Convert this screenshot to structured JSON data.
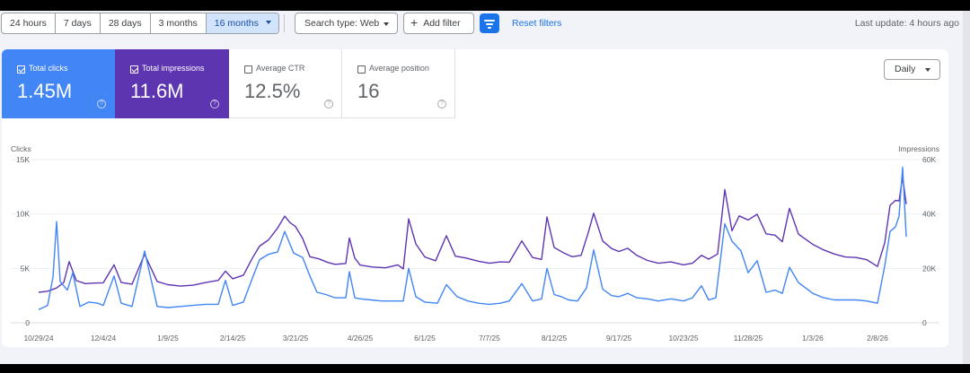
{
  "toolbar": {
    "ranges": [
      {
        "label": "24 hours",
        "active": false
      },
      {
        "label": "7 days",
        "active": false
      },
      {
        "label": "28 days",
        "active": false
      },
      {
        "label": "3 months",
        "active": false
      },
      {
        "label": "16 months",
        "active": true
      }
    ],
    "search_type": "Search type: Web",
    "add_filter": "Add filter",
    "reset_filters": "Reset filters",
    "last_update": "Last update: 4 hours ago"
  },
  "metrics": [
    {
      "label": "Total clicks",
      "value": "1.45M",
      "checked": true,
      "color": "#4285f4"
    },
    {
      "label": "Total impressions",
      "value": "11.6M",
      "checked": true,
      "color": "#5e35b1"
    },
    {
      "label": "Average CTR",
      "value": "12.5%",
      "checked": false
    },
    {
      "label": "Average position",
      "value": "16",
      "checked": false
    }
  ],
  "granularity": "Daily",
  "colors": {
    "clicks": "#4285f4",
    "impressions": "#5e35b1",
    "accent": "#1a73e8"
  },
  "chart_data": {
    "type": "line",
    "left_axis": {
      "title": "Clicks",
      "ticks": [
        "0",
        "5K",
        "10K",
        "15K"
      ],
      "range": [
        0,
        15000
      ]
    },
    "right_axis": {
      "title": "Impressions",
      "ticks": [
        "0",
        "20K",
        "40K",
        "60K"
      ],
      "range": [
        0,
        60000
      ]
    },
    "x_tick_labels": [
      "10/29/24",
      "12/4/24",
      "1/9/25",
      "2/14/25",
      "3/21/25",
      "4/26/25",
      "6/1/25",
      "7/7/25",
      "8/12/25",
      "9/17/25",
      "10/23/25",
      "11/28/25",
      "1/3/26",
      "2/8/26"
    ],
    "x_range": [
      "10/29/24",
      "2/26/26"
    ],
    "grid": true,
    "series": [
      {
        "name": "Clicks",
        "axis": "left",
        "color": "#4285f4",
        "points": [
          [
            "10/29/24",
            1200
          ],
          [
            "11/3/24",
            1600
          ],
          [
            "11/6/24",
            4200
          ],
          [
            "11/8/24",
            9300
          ],
          [
            "11/10/24",
            3800
          ],
          [
            "11/14/24",
            3000
          ],
          [
            "11/17/24",
            4600
          ],
          [
            "11/21/24",
            1500
          ],
          [
            "11/26/24",
            1900
          ],
          [
            "12/1/24",
            1800
          ],
          [
            "12/4/24",
            1600
          ],
          [
            "12/10/24",
            4300
          ],
          [
            "12/14/24",
            1800
          ],
          [
            "12/20/24",
            1500
          ],
          [
            "12/27/24",
            6600
          ],
          [
            "1/3/25",
            1500
          ],
          [
            "1/9/25",
            1400
          ],
          [
            "1/16/25",
            1500
          ],
          [
            "1/23/25",
            1600
          ],
          [
            "1/30/25",
            1700
          ],
          [
            "2/6/25",
            1700
          ],
          [
            "2/10/25",
            3900
          ],
          [
            "2/14/25",
            1600
          ],
          [
            "2/20/25",
            1900
          ],
          [
            "2/25/25",
            4100
          ],
          [
            "3/1/25",
            5800
          ],
          [
            "3/6/25",
            6300
          ],
          [
            "3/11/25",
            6500
          ],
          [
            "3/15/25",
            8400
          ],
          [
            "3/20/25",
            6400
          ],
          [
            "3/25/25",
            6000
          ],
          [
            "3/29/25",
            4300
          ],
          [
            "4/2/25",
            2800
          ],
          [
            "4/7/25",
            2600
          ],
          [
            "4/12/25",
            2300
          ],
          [
            "4/18/25",
            2300
          ],
          [
            "4/20/25",
            4700
          ],
          [
            "4/23/25",
            2300
          ],
          [
            "4/26/25",
            2200
          ],
          [
            "5/2/25",
            2100
          ],
          [
            "5/8/25",
            2000
          ],
          [
            "5/15/25",
            2000
          ],
          [
            "5/20/25",
            2000
          ],
          [
            "5/23/25",
            5000
          ],
          [
            "5/27/25",
            2400
          ],
          [
            "6/1/25",
            1900
          ],
          [
            "6/8/25",
            1800
          ],
          [
            "6/13/25",
            3500
          ],
          [
            "6/19/25",
            2400
          ],
          [
            "6/25/25",
            2000
          ],
          [
            "7/1/25",
            1800
          ],
          [
            "7/7/25",
            1700
          ],
          [
            "7/13/25",
            1800
          ],
          [
            "7/18/25",
            2000
          ],
          [
            "7/25/25",
            3600
          ],
          [
            "7/31/25",
            2000
          ],
          [
            "8/5/25",
            2200
          ],
          [
            "8/8/25",
            5000
          ],
          [
            "8/12/25",
            2600
          ],
          [
            "8/16/25",
            2400
          ],
          [
            "8/20/25",
            2100
          ],
          [
            "8/25/25",
            2000
          ],
          [
            "8/30/25",
            3200
          ],
          [
            "9/3/25",
            6700
          ],
          [
            "9/8/25",
            3100
          ],
          [
            "9/13/25",
            2500
          ],
          [
            "9/17/25",
            2400
          ],
          [
            "9/22/25",
            2700
          ],
          [
            "9/27/25",
            2300
          ],
          [
            "10/3/25",
            2200
          ],
          [
            "10/9/25",
            2000
          ],
          [
            "10/16/25",
            2200
          ],
          [
            "10/23/25",
            2000
          ],
          [
            "10/28/25",
            2300
          ],
          [
            "11/2/25",
            3400
          ],
          [
            "11/6/25",
            2100
          ],
          [
            "11/10/25",
            2300
          ],
          [
            "11/15/25",
            9100
          ],
          [
            "11/19/25",
            7500
          ],
          [
            "11/24/25",
            6600
          ],
          [
            "11/28/25",
            4600
          ],
          [
            "12/3/25",
            5700
          ],
          [
            "12/8/25",
            2800
          ],
          [
            "12/13/25",
            3000
          ],
          [
            "12/17/25",
            2700
          ],
          [
            "12/21/25",
            5100
          ],
          [
            "12/26/25",
            3700
          ],
          [
            "1/3/26",
            2700
          ],
          [
            "1/9/26",
            2300
          ],
          [
            "1/15/26",
            2100
          ],
          [
            "1/21/26",
            2100
          ],
          [
            "1/27/26",
            2100
          ],
          [
            "2/2/26",
            2000
          ],
          [
            "2/8/26",
            1800
          ],
          [
            "2/12/26",
            5200
          ],
          [
            "2/15/26",
            8400
          ],
          [
            "2/18/26",
            8800
          ],
          [
            "2/20/26",
            9800
          ],
          [
            "2/22/26",
            14300
          ],
          [
            "2/24/26",
            7900
          ]
        ]
      },
      {
        "name": "Impressions",
        "axis": "right",
        "color": "#5e35b1",
        "points": [
          [
            "10/29/24",
            11200
          ],
          [
            "11/3/24",
            11600
          ],
          [
            "11/8/24",
            12800
          ],
          [
            "11/12/24",
            14800
          ],
          [
            "11/15/24",
            22500
          ],
          [
            "11/19/24",
            15500
          ],
          [
            "11/24/24",
            14400
          ],
          [
            "11/29/24",
            14600
          ],
          [
            "12/4/24",
            14700
          ],
          [
            "12/10/24",
            21300
          ],
          [
            "12/14/24",
            14800
          ],
          [
            "12/20/24",
            14200
          ],
          [
            "12/27/24",
            25200
          ],
          [
            "1/3/25",
            15200
          ],
          [
            "1/9/25",
            14000
          ],
          [
            "1/16/25",
            13500
          ],
          [
            "1/23/25",
            13800
          ],
          [
            "1/30/25",
            14800
          ],
          [
            "2/6/25",
            15600
          ],
          [
            "2/10/25",
            19000
          ],
          [
            "2/14/25",
            16200
          ],
          [
            "2/20/25",
            17500
          ],
          [
            "2/25/25",
            23800
          ],
          [
            "3/1/25",
            28200
          ],
          [
            "3/6/25",
            30500
          ],
          [
            "3/11/25",
            34800
          ],
          [
            "3/15/25",
            39200
          ],
          [
            "3/18/25",
            36800
          ],
          [
            "3/21/25",
            35400
          ],
          [
            "3/25/25",
            31000
          ],
          [
            "3/29/25",
            24300
          ],
          [
            "4/3/25",
            23500
          ],
          [
            "4/8/25",
            22200
          ],
          [
            "4/12/25",
            21500
          ],
          [
            "4/18/25",
            21800
          ],
          [
            "4/20/25",
            31200
          ],
          [
            "4/23/25",
            23800
          ],
          [
            "4/26/25",
            21200
          ],
          [
            "5/3/25",
            20500
          ],
          [
            "5/10/25",
            20200
          ],
          [
            "5/17/25",
            21300
          ],
          [
            "5/20/25",
            19800
          ],
          [
            "5/23/25",
            38200
          ],
          [
            "5/27/25",
            29000
          ],
          [
            "6/1/25",
            24200
          ],
          [
            "6/7/25",
            22800
          ],
          [
            "6/13/25",
            32000
          ],
          [
            "6/18/25",
            24500
          ],
          [
            "6/24/25",
            23800
          ],
          [
            "7/1/25",
            22600
          ],
          [
            "7/7/25",
            21900
          ],
          [
            "7/13/25",
            22400
          ],
          [
            "7/18/25",
            22300
          ],
          [
            "7/25/25",
            30100
          ],
          [
            "7/31/25",
            24000
          ],
          [
            "8/5/25",
            23300
          ],
          [
            "8/8/25",
            38900
          ],
          [
            "8/12/25",
            27700
          ],
          [
            "8/17/25",
            25800
          ],
          [
            "8/22/25",
            24300
          ],
          [
            "8/27/25",
            24800
          ],
          [
            "8/31/25",
            33200
          ],
          [
            "9/3/25",
            40300
          ],
          [
            "9/8/25",
            30100
          ],
          [
            "9/13/25",
            27300
          ],
          [
            "9/17/25",
            26200
          ],
          [
            "9/22/25",
            27400
          ],
          [
            "9/27/25",
            24800
          ],
          [
            "10/3/25",
            22900
          ],
          [
            "10/9/25",
            21900
          ],
          [
            "10/16/25",
            22400
          ],
          [
            "10/23/25",
            21300
          ],
          [
            "10/28/25",
            21900
          ],
          [
            "11/2/25",
            24800
          ],
          [
            "11/6/25",
            23400
          ],
          [
            "11/11/25",
            25300
          ],
          [
            "11/15/25",
            49000
          ],
          [
            "11/19/25",
            33800
          ],
          [
            "11/23/25",
            39300
          ],
          [
            "11/28/25",
            37800
          ],
          [
            "12/3/25",
            39900
          ],
          [
            "12/8/25",
            32700
          ],
          [
            "12/13/25",
            32200
          ],
          [
            "12/17/25",
            29800
          ],
          [
            "12/21/25",
            42100
          ],
          [
            "12/26/25",
            32600
          ],
          [
            "1/3/26",
            28800
          ],
          [
            "1/9/26",
            26800
          ],
          [
            "1/15/26",
            25300
          ],
          [
            "1/21/26",
            24200
          ],
          [
            "1/27/26",
            24000
          ],
          [
            "2/2/26",
            23200
          ],
          [
            "2/8/26",
            20700
          ],
          [
            "2/12/26",
            29300
          ],
          [
            "2/15/26",
            43200
          ],
          [
            "2/18/26",
            45000
          ],
          [
            "2/20/26",
            44800
          ],
          [
            "2/22/26",
            53600
          ],
          [
            "2/24/26",
            43600
          ]
        ]
      }
    ]
  }
}
